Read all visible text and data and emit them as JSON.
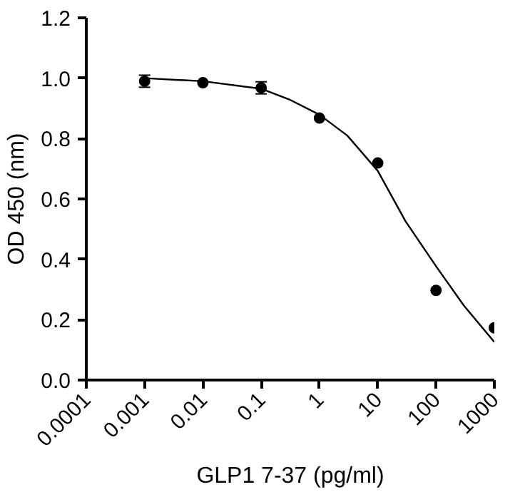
{
  "chart_data": {
    "type": "scatter",
    "xlabel": "GLP1 7-37 (pg/ml)",
    "ylabel": "OD 450 (nm)",
    "log": "x",
    "grid": false,
    "marker": "circle",
    "xlim": [
      0.0001,
      1000
    ],
    "xticks": [
      0.0001,
      0.001,
      0.01,
      0.1,
      1,
      10,
      100,
      1000
    ],
    "ylim": [
      0,
      1.2
    ],
    "yticks": [
      {
        "value": 0,
        "label": "0.0"
      },
      {
        "value": 0.2,
        "label": "0.2"
      },
      {
        "value": 0.4,
        "label": "0.4"
      },
      {
        "value": 0.6,
        "label": "0.6"
      },
      {
        "value": 0.8,
        "label": "0.8"
      },
      {
        "value": 1.0,
        "label": "1.0"
      },
      {
        "value": 1.2,
        "label": "1.2"
      }
    ],
    "series": [
      {
        "color": "#000000",
        "x": [
          0.001,
          0.01,
          0.1,
          1,
          10,
          100,
          1000
        ],
        "values": [
          0.99,
          0.985,
          0.968,
          0.868,
          0.719,
          0.297,
          0.173
        ],
        "errors": [
          0.02,
          null,
          0.02,
          null,
          null,
          null,
          null
        ]
      },
      {
        "type": "line",
        "color": "#000000",
        "marker": "none",
        "x": [
          0.001,
          0.01,
          0.1,
          0.3,
          1,
          3,
          10,
          30,
          100,
          300,
          1000
        ],
        "values": [
          1.0,
          0.99,
          0.965,
          0.93,
          0.879,
          0.81,
          0.693,
          0.526,
          0.377,
          0.247,
          0.126
        ]
      }
    ]
  }
}
